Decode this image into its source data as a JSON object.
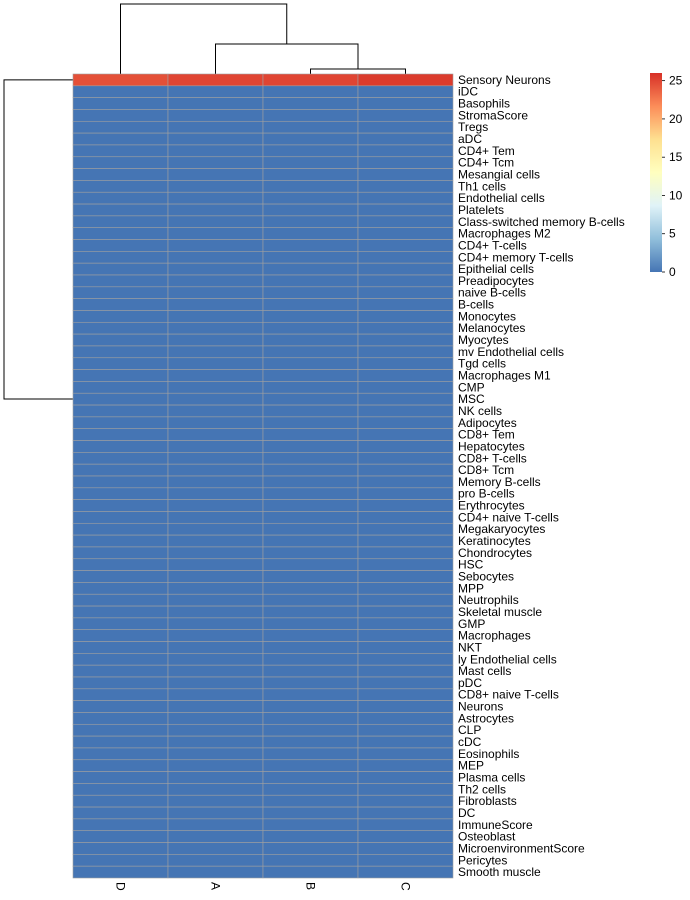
{
  "chart_data": {
    "type": "heatmap",
    "title": "",
    "xlabel": "",
    "ylabel": "",
    "columns": [
      "D",
      "A",
      "B",
      "C"
    ],
    "rows": [
      "Sensory Neurons",
      "iDC",
      "Basophils",
      "StromaScore",
      "Tregs",
      "aDC",
      "CD4+ Tem",
      "CD4+ Tcm",
      "Mesangial cells",
      "Th1 cells",
      "Endothelial cells",
      "Platelets",
      "Class-switched memory B-cells",
      "Macrophages M2",
      "CD4+ T-cells",
      "CD4+ memory T-cells",
      "Epithelial cells",
      "Preadipocytes",
      "naive B-cells",
      "B-cells",
      "Monocytes",
      "Melanocytes",
      "Myocytes",
      "mv Endothelial cells",
      "Tgd cells",
      "Macrophages M1",
      "CMP",
      "MSC",
      "NK cells",
      "Adipocytes",
      "CD8+ Tem",
      "Hepatocytes",
      "CD8+ T-cells",
      "CD8+ Tcm",
      "Memory B-cells",
      "pro B-cells",
      "Erythrocytes",
      "CD4+ naive T-cells",
      "Megakaryocytes",
      "Keratinocytes",
      "Chondrocytes",
      "HSC",
      "Sebocytes",
      "MPP",
      "Neutrophils",
      "Skeletal muscle",
      "GMP",
      "Macrophages",
      "NKT",
      "ly Endothelial cells",
      "Mast cells",
      "pDC",
      "CD8+ naive T-cells",
      "Neurons",
      "Astrocytes",
      "CLP",
      "cDC",
      "Eosinophils",
      "MEP",
      "Plasma cells",
      "Th2 cells",
      "Fibroblasts",
      "DC",
      "ImmuneScore",
      "Osteoblast",
      "MicroenvironmentScore",
      "Pericytes",
      "Smooth muscle"
    ],
    "values": {
      "Sensory Neurons": [
        24.5,
        25,
        25,
        25.5
      ]
    },
    "default_value": 0,
    "color_scale": {
      "min": 0,
      "max": 26,
      "ticks": [
        0,
        5,
        10,
        15,
        20,
        25
      ],
      "colors": [
        "#4575b4",
        "#91bfdb",
        "#e0f3f8",
        "#ffffbf",
        "#fee090",
        "#fc8d59",
        "#d73027"
      ]
    },
    "grid_color": "#a0a0a0",
    "column_dendrogram": true,
    "row_dendrogram": true,
    "legend": "right"
  }
}
